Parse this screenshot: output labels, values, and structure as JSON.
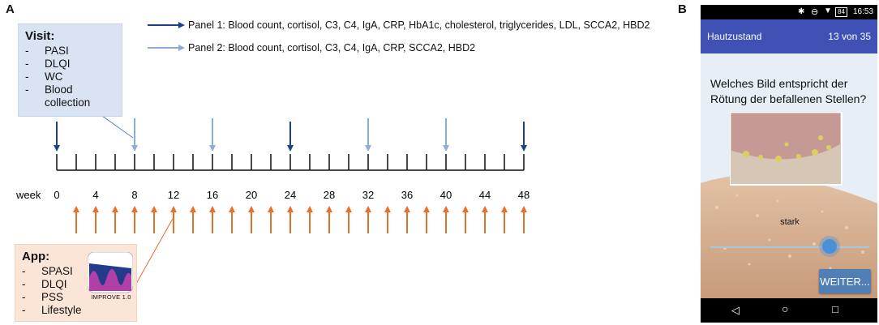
{
  "panel_a": {
    "letter": "A",
    "legend": {
      "panel1": "Panel 1: Blood count, cortisol, C3, C4, IgA, CRP, HbA1c, cholesterol, triglycerides, LDL, SCCA2, HBD2",
      "panel2": "Panel 2: Blood count, cortisol, C3, C4, IgA, CRP, SCCA2, HBD2"
    },
    "visit_box": {
      "title": "Visit:",
      "items": [
        "PASI",
        "DLQI",
        "WC",
        "Blood collection"
      ]
    },
    "app_box": {
      "title": "App:",
      "items": [
        "SPASI",
        "DLQI",
        "PSS",
        "Lifestyle"
      ],
      "icon_label": "IMPROVE 1.0"
    },
    "timeline": {
      "axis_label": "week",
      "week_labels": [
        "0",
        "4",
        "8",
        "12",
        "16",
        "20",
        "24",
        "28",
        "32",
        "36",
        "40",
        "44",
        "48"
      ],
      "panel1_weeks": [
        0,
        24,
        48
      ],
      "panel2_weeks": [
        8,
        16,
        32,
        40
      ],
      "app_weeks": [
        2,
        4,
        6,
        8,
        10,
        12,
        14,
        16,
        18,
        20,
        22,
        24,
        26,
        28,
        30,
        32,
        34,
        36,
        38,
        40,
        42,
        44,
        46,
        48
      ],
      "colors": {
        "panel1": "#1f3e8c",
        "panel2": "#8eaadb",
        "app": "#e4712b",
        "axis": "#111111"
      }
    }
  },
  "panel_b": {
    "letter": "B",
    "status_bar": {
      "battery": "84",
      "time": "16:53"
    },
    "app_bar": {
      "title": "Hautzustand",
      "counter": "13 von 35"
    },
    "question": "Welches Bild entspricht der Rötung der befallenen Stellen?",
    "slider_label": "stark",
    "slider_value": 0.75,
    "next_button": "WEITER...",
    "colors": {
      "app_bar": "#3f51b5",
      "button": "#4f7fb5",
      "slider": "#4a90d9"
    }
  }
}
